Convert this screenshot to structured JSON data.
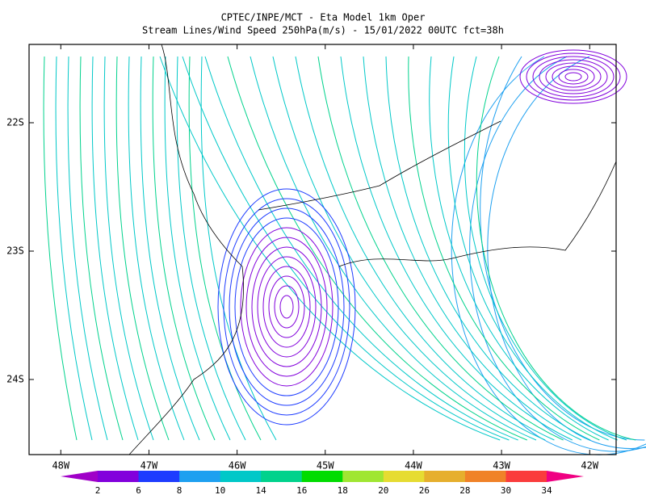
{
  "title": "CPTEC/INPE/MCT -  Eta Model 1km Oper",
  "subtitle": "Stream Lines/Wind Speed 250hPa(m/s) - 15/01/2022 00UTC fct=38h",
  "map": {
    "lonlim": [
      -48.36,
      -41.7
    ],
    "latlim": [
      -24.585,
      -21.39
    ],
    "lon_ticks": [
      {
        "value": -48,
        "label": "48W"
      },
      {
        "value": -47,
        "label": "47W"
      },
      {
        "value": -46,
        "label": "46W"
      },
      {
        "value": -45,
        "label": "45W"
      },
      {
        "value": -44,
        "label": "44W"
      },
      {
        "value": -43,
        "label": "43W"
      },
      {
        "value": -42,
        "label": "42W"
      }
    ],
    "lat_ticks": [
      {
        "value": -22,
        "label": "22S"
      },
      {
        "value": -23,
        "label": "23S"
      },
      {
        "value": -24,
        "label": "24S"
      }
    ]
  },
  "colorbar": {
    "labels": [
      2,
      6,
      8,
      10,
      14,
      16,
      18,
      20,
      26,
      28,
      30,
      34
    ],
    "colors": [
      "#a000c8",
      "#8200dc",
      "#1e3cff",
      "#1ea0f0",
      "#00c8c8",
      "#00d28c",
      "#00dc00",
      "#a0e632",
      "#e6dc32",
      "#e6af2d",
      "#f08228",
      "#fa3c3c",
      "#f00082"
    ]
  }
}
